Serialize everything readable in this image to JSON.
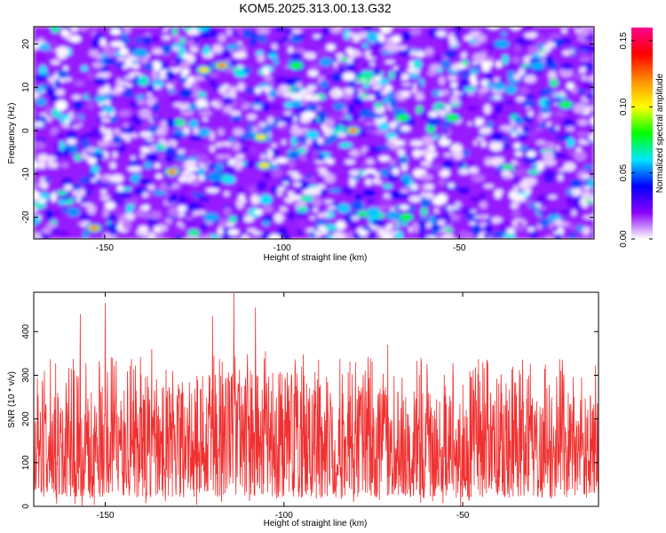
{
  "page_title": "KOM5.2025.313.00.13.G32",
  "chart_data": [
    {
      "type": "heatmap",
      "title": "KOM5.2025.313.00.13.G32",
      "xlabel": "Height of straight line (km)",
      "ylabel": "Frequency (Hz)",
      "xlim": [
        -170,
        -12
      ],
      "ylim": [
        -25,
        24
      ],
      "xticks": [
        -150,
        -100,
        -50
      ],
      "yticks": [
        20,
        10,
        0,
        -10,
        -20
      ],
      "xtick_labels": [
        "-150",
        "-100",
        "-50"
      ],
      "ytick_labels": [
        "20",
        "10",
        "0",
        "-10",
        "-20"
      ],
      "colorbar": {
        "label": "Normalized spectral amplitude",
        "range": [
          0.0,
          0.16
        ],
        "ticks": [
          0.0,
          0.05,
          0.1,
          0.15
        ],
        "tick_labels": [
          "0.00",
          "0.05",
          "0.10",
          "0.15"
        ],
        "colors": [
          "#ffffff",
          "#8a00ff",
          "#0000ff",
          "#00e5ff",
          "#00ff00",
          "#ffff00",
          "#ff8c00",
          "#ff0000",
          "#ff0090"
        ]
      },
      "hotspots": [
        {
          "x": -153,
          "y": -22.5,
          "value": 0.15
        },
        {
          "x": -131,
          "y": -9.5,
          "value": 0.15
        },
        {
          "x": -117,
          "y": 15,
          "value": 0.13
        },
        {
          "x": -122,
          "y": 14,
          "value": 0.12
        },
        {
          "x": -106,
          "y": -1.5,
          "value": 0.11
        },
        {
          "x": -105,
          "y": -8,
          "value": 0.12
        },
        {
          "x": -80,
          "y": 0,
          "value": 0.15
        },
        {
          "x": -96,
          "y": 15,
          "value": 0.09
        },
        {
          "x": -66,
          "y": 3,
          "value": 0.08
        },
        {
          "x": -65,
          "y": -20,
          "value": 0.08
        },
        {
          "x": -52,
          "y": 3,
          "value": 0.09
        },
        {
          "x": -38,
          "y": 20,
          "value": 0.07
        },
        {
          "x": -20,
          "y": 6,
          "value": 0.08
        },
        {
          "x": -28,
          "y": 15,
          "value": 0.06
        },
        {
          "x": -120,
          "y": -20,
          "value": 0.06
        },
        {
          "x": -140,
          "y": 18,
          "value": 0.06
        }
      ],
      "background_amplitude_range": [
        0.0,
        0.06
      ]
    },
    {
      "type": "line",
      "title": "",
      "xlabel": "Height of straight line (km)",
      "ylabel": "SNR (10 * v/v)",
      "xlim": [
        -170,
        -12
      ],
      "ylim": [
        0,
        490
      ],
      "xticks": [
        -150,
        -100,
        -50
      ],
      "yticks": [
        0,
        100,
        200,
        300,
        400
      ],
      "xtick_labels": [
        "-150",
        "-100",
        "-50"
      ],
      "ytick_labels": [
        "0",
        "100",
        "200",
        "300",
        "400"
      ],
      "series": [
        {
          "name": "SNR",
          "color": "#f03030",
          "typical_range": [
            40,
            260
          ],
          "peaks": [
            {
              "x": -157,
              "y": 440
            },
            {
              "x": -150,
              "y": 465
            },
            {
              "x": -120,
              "y": 435
            },
            {
              "x": -114,
              "y": 488
            },
            {
              "x": -108,
              "y": 455
            },
            {
              "x": -148,
              "y": 340
            },
            {
              "x": -71,
              "y": 370
            },
            {
              "x": -80,
              "y": 330
            },
            {
              "x": -60,
              "y": 325
            },
            {
              "x": -36,
              "y": 320
            },
            {
              "x": -137,
              "y": 360
            },
            {
              "x": -95,
              "y": 320
            }
          ]
        }
      ]
    }
  ]
}
